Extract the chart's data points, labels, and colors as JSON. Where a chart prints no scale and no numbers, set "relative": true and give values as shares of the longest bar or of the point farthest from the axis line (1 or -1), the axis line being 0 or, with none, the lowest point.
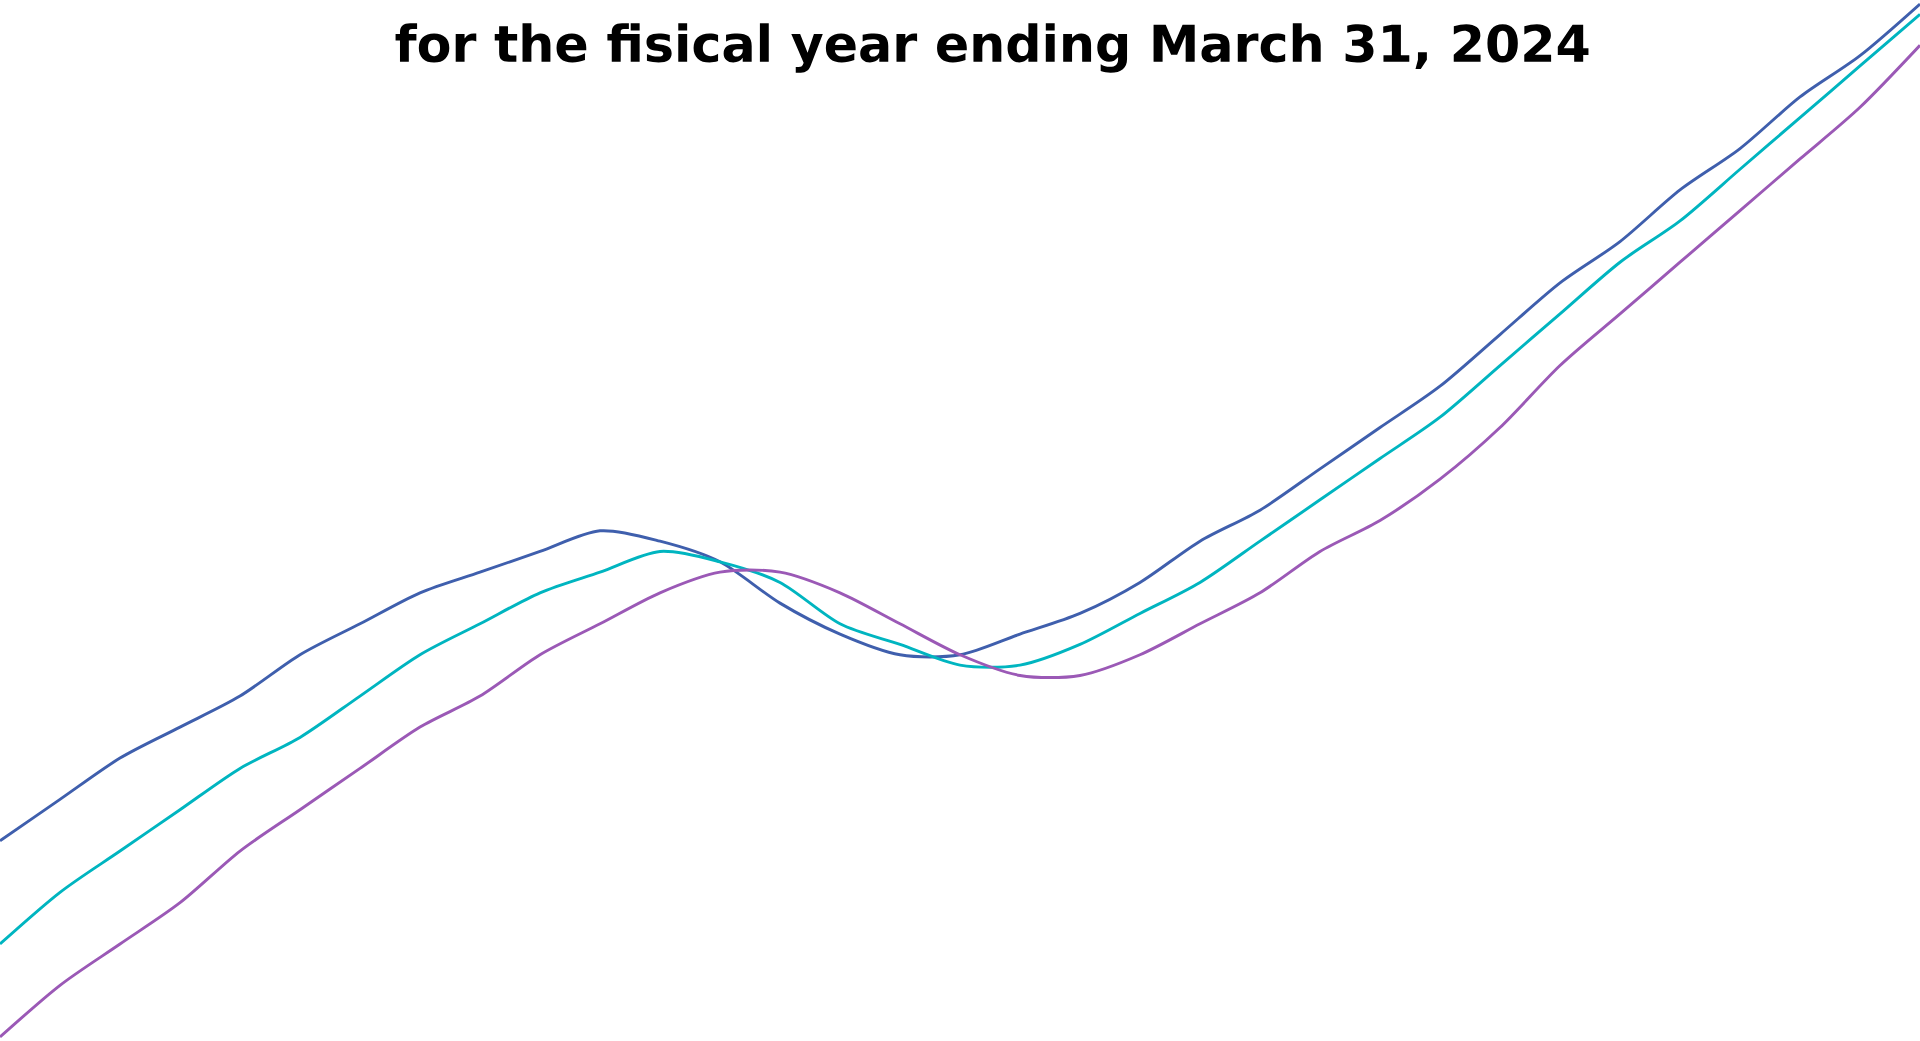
{
  "chart_data": {
    "type": "line",
    "title": "for the fisical year ending March 31, 2024",
    "relative": true,
    "categories": [
      null,
      null,
      null,
      null,
      null,
      null,
      null,
      null,
      null,
      null,
      null,
      null,
      null,
      null,
      null,
      null,
      null,
      null,
      null,
      null,
      null,
      null,
      null,
      null,
      null,
      null,
      null,
      null,
      null,
      null,
      null,
      null,
      null
    ],
    "series": [
      {
        "color": "#3f5fad",
        "values": [
          0.19,
          0.23,
          0.27,
          0.3,
          0.33,
          0.37,
          0.4,
          0.43,
          0.45,
          0.47,
          0.49,
          0.48,
          0.46,
          0.42,
          0.39,
          0.37,
          0.37,
          0.39,
          0.41,
          0.44,
          0.48,
          0.51,
          0.55,
          0.59,
          0.63,
          0.68,
          0.73,
          0.77,
          0.82,
          0.86,
          0.91,
          0.95,
          1
        ]
      },
      {
        "color": "#00b5c0",
        "values": [
          0.09,
          0.14,
          0.18,
          0.22,
          0.26,
          0.29,
          0.33,
          0.37,
          0.4,
          0.43,
          0.45,
          0.47,
          0.46,
          0.44,
          0.4,
          0.38,
          0.36,
          0.36,
          0.38,
          0.41,
          0.44,
          0.48,
          0.52,
          0.56,
          0.6,
          0.65,
          0.7,
          0.75,
          0.79,
          0.84,
          0.89,
          0.94,
          0.99
        ]
      },
      {
        "color": "#9b59b6",
        "values": [
          0,
          0.05,
          0.09,
          0.13,
          0.18,
          0.22,
          0.26,
          0.3,
          0.33,
          0.37,
          0.4,
          0.43,
          0.45,
          0.45,
          0.43,
          0.4,
          0.37,
          0.35,
          0.35,
          0.37,
          0.4,
          0.43,
          0.47,
          0.5,
          0.54,
          0.59,
          0.65,
          0.7,
          0.75,
          0.8,
          0.85,
          0.9,
          0.96
        ]
      }
    ]
  }
}
